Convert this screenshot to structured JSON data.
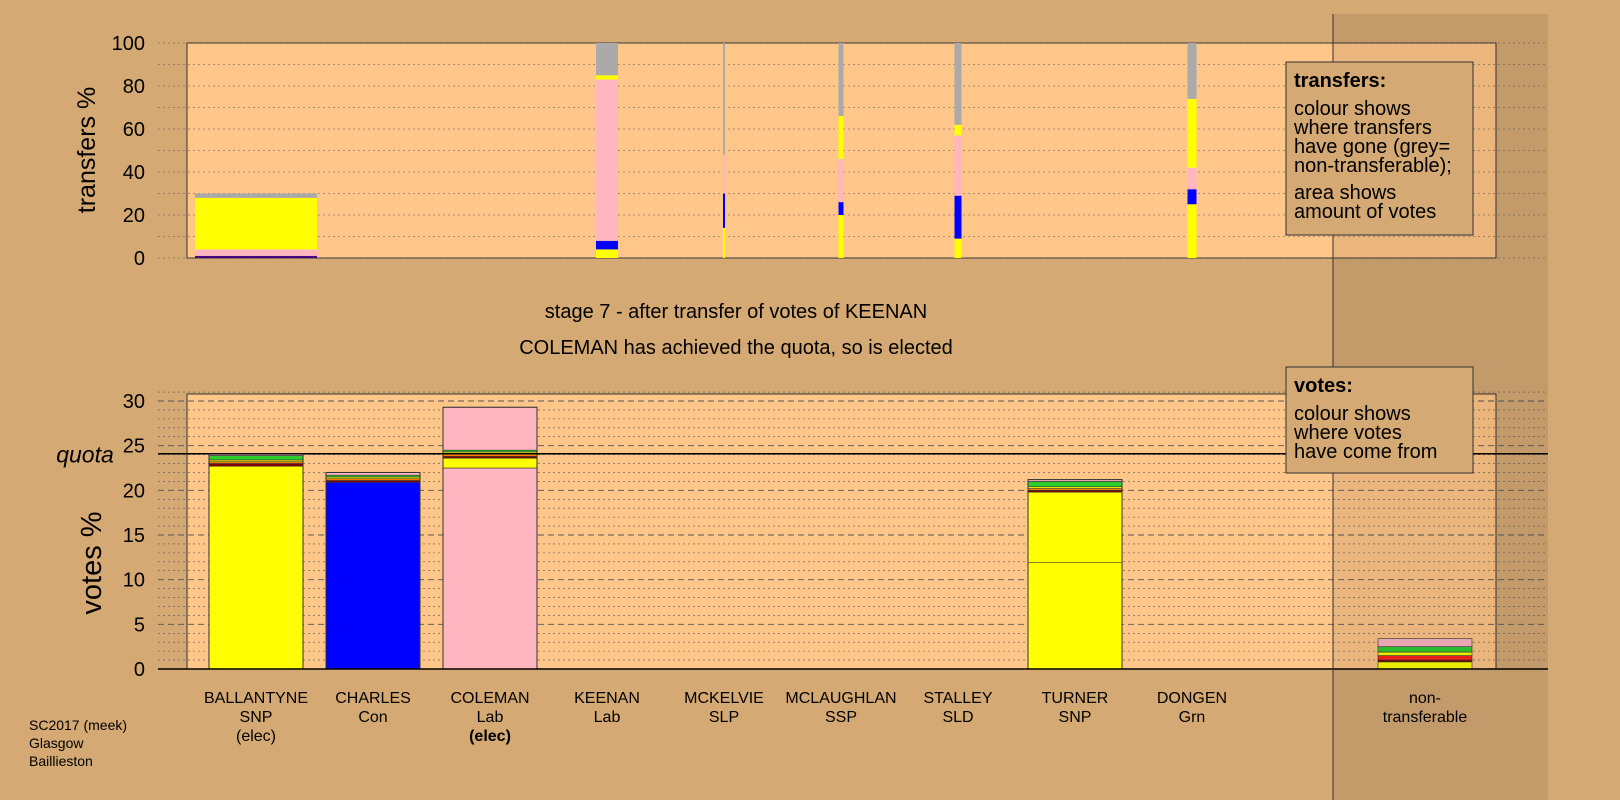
{
  "chart_data": [
    {
      "type": "bar",
      "name": "transfers",
      "ylabel": "transfers %",
      "ylim": [
        0,
        100
      ],
      "yticks": [
        0,
        20,
        40,
        60,
        80,
        100
      ],
      "grid": true,
      "legend_box": {
        "title": "transfers:",
        "lines": [
          "colour shows",
          "where transfers",
          "have gone (grey=",
          "non-transferable);"
        ],
        "lines2": [
          "area shows",
          "amount of votes"
        ],
        "placement": "top-right"
      },
      "columns": [
        {
          "candidate": "BALLANTYNE",
          "segments": [
            {
              "color": "#4b0082",
              "from": 0,
              "to": 1
            },
            {
              "color": "#ffb6c1",
              "from": 1,
              "to": 4
            },
            {
              "color": "#ffff00",
              "from": 4,
              "to": 28
            },
            {
              "color": "#aaaaaa",
              "from": 28,
              "to": 30
            }
          ]
        },
        {
          "candidate": "KEENAN",
          "segments": [
            {
              "color": "#ffff00",
              "from": 0,
              "to": 4
            },
            {
              "color": "#0000ff",
              "from": 4,
              "to": 8
            },
            {
              "color": "#ffb6c1",
              "from": 8,
              "to": 83
            },
            {
              "color": "#ffff00",
              "from": 83,
              "to": 85
            },
            {
              "color": "#aaaaaa",
              "from": 85,
              "to": 100
            }
          ]
        },
        {
          "candidate": "MCKELVIE",
          "segments": [
            {
              "color": "#ffff00",
              "from": 0,
              "to": 14
            },
            {
              "color": "#0000ff",
              "from": 14,
              "to": 30
            },
            {
              "color": "#ffb6c1",
              "from": 30,
              "to": 48
            },
            {
              "color": "#aaaaaa",
              "from": 48,
              "to": 100
            }
          ]
        },
        {
          "candidate": "MCLAUGHLAN",
          "segments": [
            {
              "color": "#ffff00",
              "from": 0,
              "to": 20
            },
            {
              "color": "#0000ff",
              "from": 20,
              "to": 26
            },
            {
              "color": "#ffb6c1",
              "from": 26,
              "to": 46
            },
            {
              "color": "#ffff00",
              "from": 46,
              "to": 66
            },
            {
              "color": "#aaaaaa",
              "from": 66,
              "to": 100
            }
          ]
        },
        {
          "candidate": "STALLEY",
          "segments": [
            {
              "color": "#ffff00",
              "from": 0,
              "to": 9
            },
            {
              "color": "#0000ff",
              "from": 9,
              "to": 29
            },
            {
              "color": "#ffb6c1",
              "from": 29,
              "to": 57
            },
            {
              "color": "#ffff00",
              "from": 57,
              "to": 62
            },
            {
              "color": "#aaaaaa",
              "from": 62,
              "to": 100
            }
          ]
        },
        {
          "candidate": "DONGEN",
          "segments": [
            {
              "color": "#ffff00",
              "from": 0,
              "to": 25
            },
            {
              "color": "#0000ff",
              "from": 25,
              "to": 32
            },
            {
              "color": "#ffb6c1",
              "from": 32,
              "to": 42
            },
            {
              "color": "#ffff00",
              "from": 42,
              "to": 74
            },
            {
              "color": "#aaaaaa",
              "from": 74,
              "to": 100
            }
          ]
        }
      ]
    },
    {
      "type": "bar",
      "name": "votes",
      "ylabel": "votes %",
      "ylim": [
        0,
        30
      ],
      "yticks": [
        0,
        5,
        10,
        15,
        20,
        25,
        30
      ],
      "quota": 24.1,
      "quota_label": "quota",
      "grid": true,
      "legend_box": {
        "title": "votes:",
        "lines": [
          "colour shows",
          "where votes",
          "have come from"
        ],
        "placement": "top-right"
      },
      "columns": [
        {
          "candidate": "BALLANTYNE",
          "party": "SNP",
          "status": "(elec)",
          "status_bold": false,
          "segments": [
            {
              "color": "#ffff00",
              "value": 22.7
            },
            {
              "color": "#800000",
              "value": 0.3
            },
            {
              "color": "#ff7f00",
              "value": 0.2
            },
            {
              "color": "#ffff00",
              "value": 0.2
            },
            {
              "color": "#2ecc2e",
              "value": 0.5
            },
            {
              "color": "#ffb6c1",
              "value": 0.2
            }
          ]
        },
        {
          "candidate": "CHARLES",
          "party": "Con",
          "status": "",
          "status_bold": false,
          "segments": [
            {
              "color": "#0000ff",
              "value": 20.9
            },
            {
              "color": "#800000",
              "value": 0.2
            },
            {
              "color": "#ff7f00",
              "value": 0.2
            },
            {
              "color": "#ffff00",
              "value": 0.2
            },
            {
              "color": "#2ecc2e",
              "value": 0.2
            },
            {
              "color": "#ffb6c1",
              "value": 0.3
            }
          ]
        },
        {
          "candidate": "COLEMAN",
          "party": "Lab",
          "status": "(elec)",
          "status_bold": true,
          "segments": [
            {
              "color": "#ffb6c1",
              "value": 22.5
            },
            {
              "color": "#ffff00",
              "value": 1.1
            },
            {
              "color": "#800000",
              "value": 0.2
            },
            {
              "color": "#ff7f00",
              "value": 0.3
            },
            {
              "color": "#ffff00",
              "value": 0.2
            },
            {
              "color": "#2ecc2e",
              "value": 0.2
            },
            {
              "color": "#ffb6c1",
              "value": 4.8
            }
          ]
        },
        {
          "candidate": "KEENAN",
          "party": "Lab",
          "status": "",
          "status_bold": false,
          "segments": []
        },
        {
          "candidate": "MCKELVIE",
          "party": "SLP",
          "status": "",
          "status_bold": false,
          "segments": []
        },
        {
          "candidate": "MCLAUGHLAN",
          "party": "SSP",
          "status": "",
          "status_bold": false,
          "segments": []
        },
        {
          "candidate": "STALLEY",
          "party": "SLD",
          "status": "",
          "status_bold": false,
          "segments": []
        },
        {
          "candidate": "TURNER",
          "party": "SNP",
          "status": "",
          "status_bold": false,
          "segments": [
            {
              "color": "#ffff00",
              "value": 11.9
            },
            {
              "color": "#ffff00",
              "value": 7.9
            },
            {
              "color": "#800000",
              "value": 0.2
            },
            {
              "color": "#ff7f00",
              "value": 0.2
            },
            {
              "color": "#ffff00",
              "value": 0.2
            },
            {
              "color": "#2ecc2e",
              "value": 0.6
            },
            {
              "color": "#ffb6c1",
              "value": 0.2
            }
          ]
        },
        {
          "candidate": "DONGEN",
          "party": "Grn",
          "status": "",
          "status_bold": false,
          "segments": []
        }
      ],
      "nontransferable": {
        "label1": "non-",
        "label2": "transferable",
        "segments": [
          {
            "color": "#ffff00",
            "value": 0.8
          },
          {
            "color": "#800000",
            "value": 0.2
          },
          {
            "color": "#ff2020",
            "value": 0.5
          },
          {
            "color": "#ffff00",
            "value": 0.4
          },
          {
            "color": "#2ecc2e",
            "value": 0.6
          },
          {
            "color": "#ffb6c1",
            "value": 0.9
          }
        ]
      }
    }
  ],
  "stage_title": "stage 7 - after transfer of votes of KEENAN",
  "stage_subtitle": "COLEMAN has achieved the quota, so is elected",
  "footer": [
    "SC2017 (meek)",
    "Glasgow",
    "Baillieston"
  ]
}
